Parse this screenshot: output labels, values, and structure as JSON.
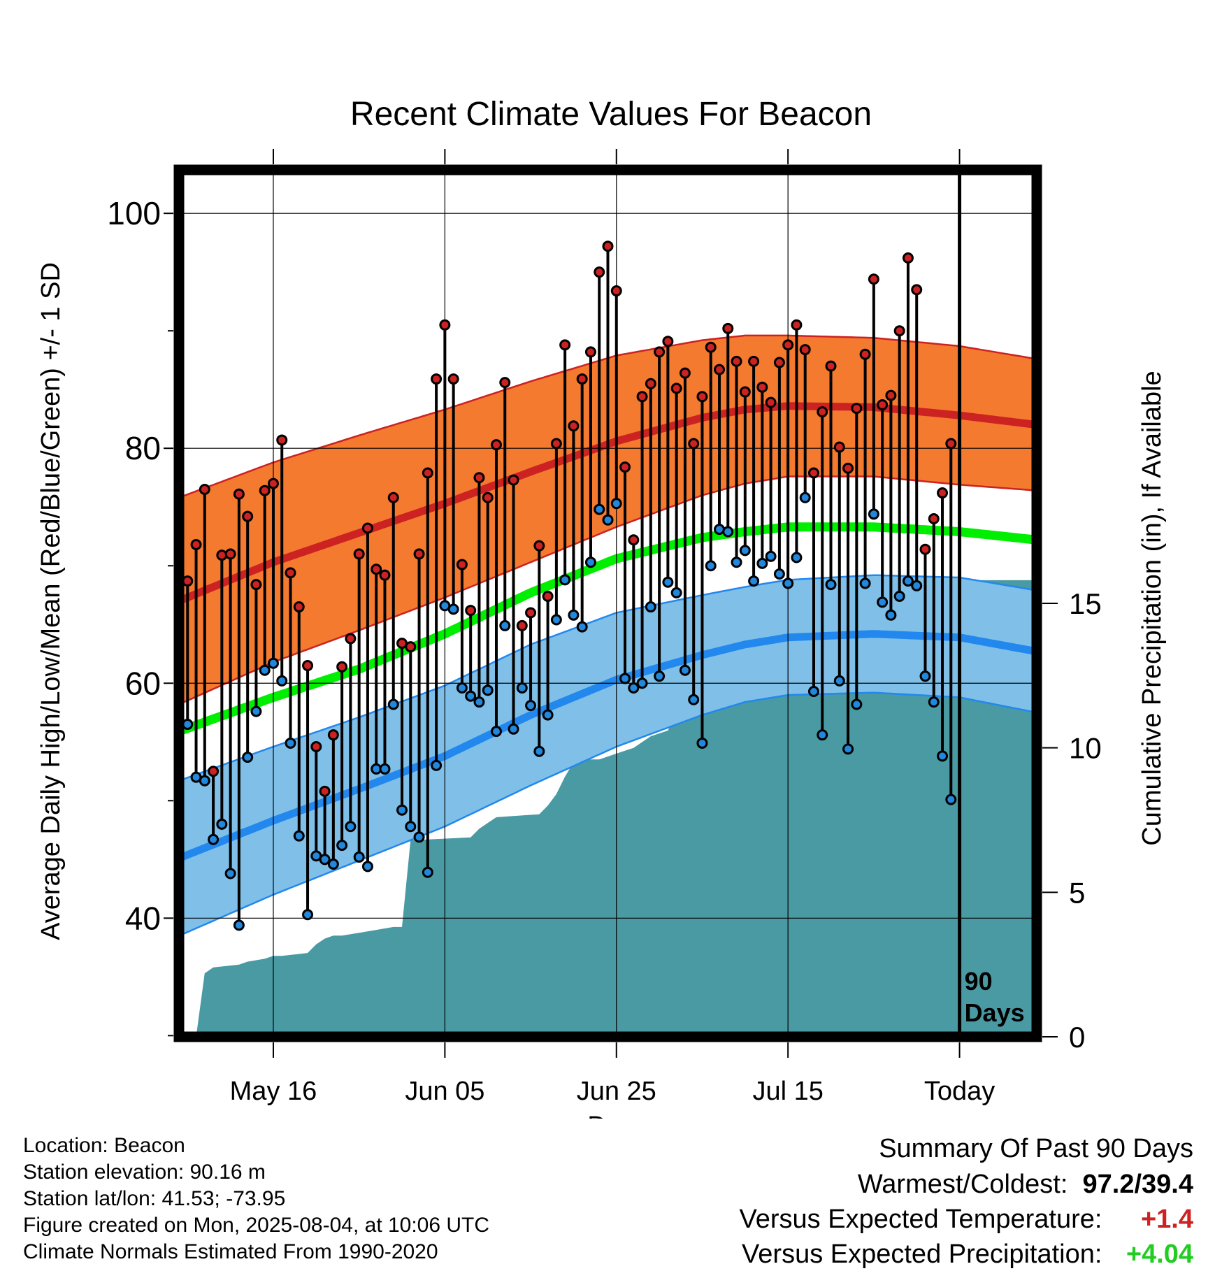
{
  "chart_data": {
    "type": "line",
    "title": "Recent Climate Values For Beacon",
    "xlabel": "Day",
    "ylabel": "Average Daily High/Low/Mean (Red/Blue/Green) +/- 1 SD",
    "y2label": "Cumulative Precipitation (in), If Available",
    "x_ticks": [
      {
        "day": 10,
        "label": "May 16"
      },
      {
        "day": 30,
        "label": "Jun 05"
      },
      {
        "day": 50,
        "label": "Jun 25"
      },
      {
        "day": 70,
        "label": "Jul 15"
      },
      {
        "day": 90,
        "label": "Today"
      }
    ],
    "xlim": [
      -1,
      99
    ],
    "ylim": [
      29.9,
      103.7
    ],
    "y_ticks": [
      40,
      60,
      80,
      100
    ],
    "y2lim": [
      0,
      30
    ],
    "y2_ticks": [
      0,
      5,
      10,
      15
    ],
    "today_day": 90,
    "today_label": [
      "90",
      "Days"
    ],
    "grid": true,
    "normals": {
      "days": [
        -1,
        10,
        20,
        30,
        40,
        50,
        60,
        65,
        70,
        80,
        90,
        99
      ],
      "high_mean": [
        67.0,
        70.3,
        72.8,
        75.3,
        78.0,
        80.6,
        82.6,
        83.3,
        83.6,
        83.5,
        82.8,
        82.0
      ],
      "high_sd": [
        8.8,
        8.5,
        8.3,
        8.0,
        7.7,
        7.3,
        6.6,
        6.3,
        6.0,
        5.9,
        5.9,
        5.6
      ],
      "mean": [
        55.9,
        58.8,
        61.2,
        64.2,
        67.7,
        70.6,
        72.4,
        72.9,
        73.3,
        73.3,
        72.9,
        72.2
      ],
      "low_mean": [
        45.1,
        48.3,
        51.0,
        53.8,
        57.3,
        60.3,
        62.4,
        63.3,
        63.9,
        64.2,
        63.9,
        62.7
      ],
      "low_sd": [
        6.6,
        6.3,
        6.1,
        6.0,
        6.0,
        5.7,
        5.1,
        4.9,
        4.9,
        5.0,
        5.1,
        5.2
      ]
    },
    "series": [
      {
        "name": "High",
        "color": "#cc2222",
        "values": [
          68.7,
          71.8,
          76.5,
          52.5,
          70.9,
          71.0,
          76.1,
          74.2,
          68.4,
          76.4,
          77.0,
          80.7,
          69.4,
          66.5,
          61.5,
          54.6,
          50.8,
          55.6,
          61.4,
          63.8,
          71.0,
          73.2,
          69.7,
          69.2,
          75.8,
          63.4,
          63.1,
          71.0,
          77.9,
          85.9,
          90.5,
          85.9,
          70.1,
          66.2,
          77.5,
          75.8,
          80.3,
          85.6,
          77.3,
          64.9,
          66.0,
          71.7,
          67.4,
          80.4,
          88.8,
          81.9,
          85.9,
          88.2,
          95.0,
          97.2,
          93.4,
          78.4,
          72.2,
          84.4,
          85.5,
          88.2,
          89.1,
          85.1,
          86.4,
          80.4,
          84.4,
          88.6,
          86.7,
          90.2,
          87.4,
          84.8,
          87.4,
          85.2,
          83.9,
          87.3,
          88.8,
          90.5,
          88.4,
          77.9,
          83.1,
          87.0,
          80.1,
          78.3,
          83.4,
          88.0,
          94.4,
          83.7,
          84.5,
          90.0,
          96.2,
          93.5,
          71.4,
          74.0,
          76.2,
          80.4
        ]
      },
      {
        "name": "Low",
        "color": "#2288dd",
        "values": [
          56.5,
          52.0,
          51.7,
          46.7,
          48.0,
          43.8,
          39.4,
          53.7,
          57.6,
          61.1,
          61.7,
          60.2,
          54.9,
          47.0,
          40.3,
          45.3,
          45.0,
          44.6,
          46.2,
          47.8,
          45.2,
          44.4,
          52.7,
          52.7,
          58.2,
          49.2,
          47.8,
          46.9,
          43.9,
          53.0,
          66.6,
          66.3,
          59.6,
          58.9,
          58.4,
          59.4,
          55.9,
          64.9,
          56.1,
          59.6,
          58.1,
          54.2,
          57.3,
          65.4,
          68.8,
          65.8,
          64.8,
          70.3,
          74.8,
          73.9,
          75.3,
          60.4,
          59.6,
          60.0,
          66.5,
          60.6,
          68.6,
          67.7,
          61.1,
          58.6,
          54.9,
          70.0,
          73.1,
          72.9,
          70.3,
          71.3,
          68.7,
          70.2,
          70.8,
          69.3,
          68.5,
          70.7,
          75.8,
          59.3,
          55.6,
          68.4,
          60.2,
          54.4,
          58.2,
          68.5,
          74.4,
          66.9,
          65.8,
          67.4,
          68.7,
          68.3,
          60.6,
          58.4,
          53.8,
          50.1
        ]
      }
    ],
    "precip": {
      "name": "Cumulative Precipitation",
      "color": "#4a9aa3",
      "days": [
        0,
        1,
        2,
        3,
        6,
        7,
        9,
        10,
        11,
        14,
        15,
        16,
        17,
        18,
        20,
        22,
        24,
        25,
        26,
        33,
        34,
        35,
        36,
        41,
        42,
        43,
        44,
        45,
        46,
        48,
        49,
        50,
        51,
        52,
        53,
        54,
        56,
        57,
        58,
        62,
        63,
        70,
        71,
        72,
        80,
        81,
        82,
        85,
        86,
        87,
        88,
        99
      ],
      "values": [
        0,
        0,
        2.2,
        2.4,
        2.5,
        2.6,
        2.7,
        2.8,
        2.8,
        2.9,
        3.2,
        3.4,
        3.5,
        3.5,
        3.6,
        3.7,
        3.8,
        3.8,
        6.8,
        6.9,
        7.2,
        7.4,
        7.6,
        7.7,
        8.0,
        8.4,
        9.0,
        9.5,
        9.6,
        9.6,
        9.7,
        9.8,
        9.9,
        10.0,
        10.2,
        10.4,
        10.6,
        11.2,
        11.6,
        11.7,
        12.3,
        12.6,
        13.0,
        13.1,
        13.1,
        13.3,
        13.5,
        13.8,
        14.8,
        15.6,
        15.8,
        15.8
      ]
    }
  },
  "footer": {
    "location": "Location: Beacon",
    "elevation": "Station elevation: 90.16 m",
    "latlon": "Station lat/lon: 41.53; -73.95",
    "created": "Figure created on Mon, 2025-08-04, at 10:06 UTC",
    "normals_period": "Climate Normals Estimated From 1990-2020"
  },
  "summary": {
    "title": "Summary Of Past 90 Days",
    "warmest_coldest_label": "Warmest/Coldest:",
    "warmest_coldest_value": "97.2/39.4",
    "temp_label": "Versus Expected Temperature:",
    "temp_value": "+1.4",
    "precip_label": "Versus Expected Precipitation:",
    "precip_value": "+4.04",
    "colors": {
      "temp": "#cc2222",
      "precip": "#22cc22"
    }
  },
  "colors": {
    "high_band": "#f47a30",
    "high_line": "#cc2222",
    "mean_line": "#00ee00",
    "low_band": "#80c0e8",
    "low_line": "#2288ee",
    "precip_fill": "#4a9aa3"
  }
}
